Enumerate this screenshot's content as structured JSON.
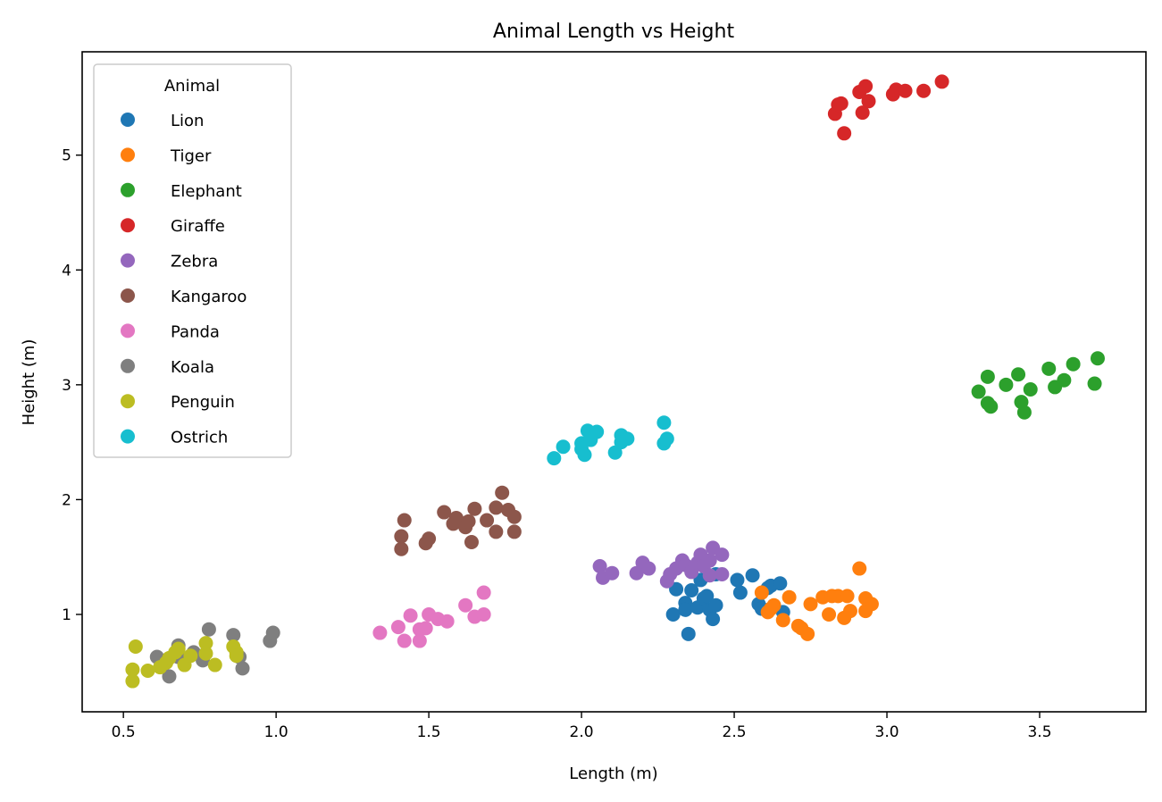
{
  "chart_data": {
    "type": "scatter",
    "title": "Animal Length vs Height",
    "xlabel": "Length (m)",
    "ylabel": "Height (m)",
    "xlim": [
      0.365,
      3.848
    ],
    "ylim": [
      0.152,
      5.9
    ],
    "xticks": [
      0.5,
      1.0,
      1.5,
      2.0,
      2.5,
      3.0,
      3.5
    ],
    "xtick_labels": [
      "0.5",
      "1.0",
      "1.5",
      "2.0",
      "2.5",
      "3.0",
      "3.5"
    ],
    "yticks": [
      1,
      2,
      3,
      4,
      5
    ],
    "ytick_labels": [
      "1",
      "2",
      "3",
      "4",
      "5"
    ],
    "grid": false,
    "legend": {
      "title": "Animal",
      "placement": "top-left"
    },
    "series": [
      {
        "name": "Lion",
        "color": "#1f77b4",
        "x": [
          2.3,
          2.31,
          2.34,
          2.34,
          2.35,
          2.36,
          2.38,
          2.39,
          2.4,
          2.41,
          2.42,
          2.44,
          2.43,
          2.44,
          2.51,
          2.52,
          2.56,
          2.58,
          2.59,
          2.61,
          2.62,
          2.65,
          2.66
        ],
        "y": [
          1.0,
          1.22,
          1.1,
          1.04,
          0.83,
          1.21,
          1.06,
          1.3,
          1.14,
          1.16,
          1.04,
          1.08,
          0.96,
          1.35,
          1.3,
          1.19,
          1.34,
          1.09,
          1.05,
          1.23,
          1.25,
          1.27,
          1.02
        ]
      },
      {
        "name": "Tiger",
        "color": "#ff7f0e",
        "x": [
          2.59,
          2.61,
          2.62,
          2.63,
          2.66,
          2.68,
          2.71,
          2.72,
          2.74,
          2.75,
          2.79,
          2.81,
          2.82,
          2.84,
          2.86,
          2.87,
          2.88,
          2.91,
          2.93,
          2.93,
          2.95
        ],
        "y": [
          1.19,
          1.02,
          1.05,
          1.08,
          0.95,
          1.15,
          0.9,
          0.88,
          0.83,
          1.09,
          1.15,
          1.0,
          1.16,
          1.16,
          0.97,
          1.16,
          1.03,
          1.4,
          1.03,
          1.14,
          1.09
        ]
      },
      {
        "name": "Elephant",
        "color": "#2ca02c",
        "x": [
          3.3,
          3.33,
          3.33,
          3.34,
          3.39,
          3.43,
          3.44,
          3.45,
          3.47,
          3.53,
          3.55,
          3.58,
          3.61,
          3.69,
          3.68
        ],
        "y": [
          2.94,
          3.07,
          2.84,
          2.81,
          3.0,
          3.09,
          2.85,
          2.76,
          2.96,
          3.14,
          2.98,
          3.04,
          3.18,
          3.23,
          3.01
        ]
      },
      {
        "name": "Giraffe",
        "color": "#d62728",
        "x": [
          2.83,
          2.84,
          2.85,
          2.93,
          2.91,
          2.94,
          2.92,
          2.86,
          3.02,
          3.03,
          3.06,
          3.12,
          3.18
        ],
        "y": [
          5.36,
          5.44,
          5.45,
          5.6,
          5.55,
          5.47,
          5.37,
          5.19,
          5.53,
          5.57,
          5.56,
          5.56,
          5.64
        ]
      },
      {
        "name": "Zebra",
        "color": "#9467bd",
        "x": [
          2.06,
          2.07,
          2.1,
          2.18,
          2.2,
          2.22,
          2.28,
          2.29,
          2.31,
          2.33,
          2.34,
          2.36,
          2.38,
          2.39,
          2.4,
          2.42,
          2.43,
          2.46,
          2.46,
          2.42
        ],
        "y": [
          1.42,
          1.32,
          1.36,
          1.36,
          1.45,
          1.4,
          1.29,
          1.35,
          1.4,
          1.47,
          1.43,
          1.37,
          1.45,
          1.52,
          1.42,
          1.47,
          1.58,
          1.52,
          1.35,
          1.34
        ]
      },
      {
        "name": "Kangaroo",
        "color": "#8c564b",
        "x": [
          1.41,
          1.41,
          1.42,
          1.49,
          1.5,
          1.55,
          1.58,
          1.59,
          1.62,
          1.63,
          1.64,
          1.65,
          1.69,
          1.72,
          1.72,
          1.74,
          1.76,
          1.78,
          1.78
        ],
        "y": [
          1.57,
          1.68,
          1.82,
          1.62,
          1.66,
          1.89,
          1.79,
          1.84,
          1.76,
          1.81,
          1.63,
          1.92,
          1.82,
          1.72,
          1.93,
          2.06,
          1.91,
          1.85,
          1.72
        ]
      },
      {
        "name": "Panda",
        "color": "#e377c2",
        "x": [
          1.34,
          1.4,
          1.42,
          1.44,
          1.47,
          1.47,
          1.49,
          1.5,
          1.53,
          1.56,
          1.62,
          1.65,
          1.68,
          1.68
        ],
        "y": [
          0.84,
          0.89,
          0.77,
          0.99,
          0.87,
          0.77,
          0.88,
          1.0,
          0.96,
          0.94,
          1.08,
          0.98,
          1.19,
          1.0
        ]
      },
      {
        "name": "Koala",
        "color": "#7f7f7f",
        "x": [
          0.61,
          0.63,
          0.65,
          0.68,
          0.68,
          0.73,
          0.76,
          0.78,
          0.86,
          0.88,
          0.89,
          0.98,
          0.99
        ],
        "y": [
          0.63,
          0.58,
          0.46,
          0.63,
          0.73,
          0.67,
          0.6,
          0.87,
          0.82,
          0.63,
          0.53,
          0.77,
          0.84
        ]
      },
      {
        "name": "Penguin",
        "color": "#bcbd22",
        "x": [
          0.53,
          0.53,
          0.54,
          0.58,
          0.62,
          0.64,
          0.65,
          0.67,
          0.68,
          0.7,
          0.72,
          0.77,
          0.77,
          0.8,
          0.86,
          0.87,
          0.87
        ],
        "y": [
          0.42,
          0.52,
          0.72,
          0.51,
          0.54,
          0.58,
          0.62,
          0.67,
          0.7,
          0.56,
          0.64,
          0.75,
          0.66,
          0.56,
          0.72,
          0.67,
          0.64
        ]
      },
      {
        "name": "Ostrich",
        "color": "#17becf",
        "x": [
          1.91,
          1.94,
          2.0,
          2.0,
          2.01,
          2.02,
          2.03,
          2.05,
          2.11,
          2.13,
          2.13,
          2.15,
          2.27,
          2.27,
          2.28
        ],
        "y": [
          2.36,
          2.46,
          2.49,
          2.44,
          2.39,
          2.6,
          2.52,
          2.59,
          2.41,
          2.56,
          2.5,
          2.53,
          2.49,
          2.67,
          2.53
        ]
      }
    ]
  }
}
